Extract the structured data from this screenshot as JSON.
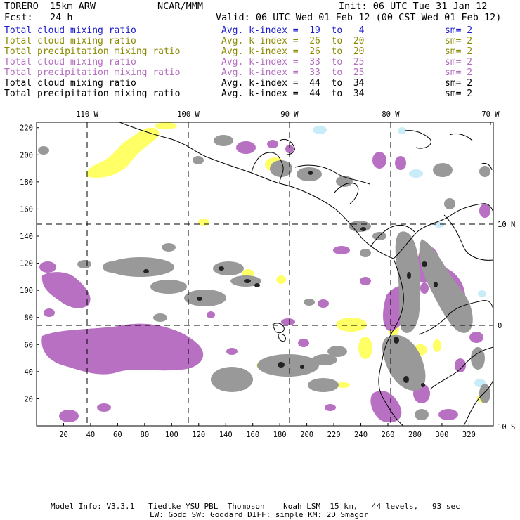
{
  "header": {
    "model": "TORERO  15km ARW",
    "org": "NCAR/MMM",
    "init": "Init: 06 UTC Tue 31 Jan 12",
    "fcst": "Fcst:   24 h",
    "valid": "Valid: 06 UTC Wed 01 Feb 12 (00 CST Wed 01 Feb 12)"
  },
  "legend": [
    {
      "field": "Total cloud mixing ratio",
      "index": "Avg. k-index =  19  to   4",
      "sm": "sm= 2",
      "color": "#1a1acc"
    },
    {
      "field": "Total cloud mixing ratio",
      "index": "Avg. k-index =  26  to  20",
      "sm": "sm= 2",
      "color": "#8a8a00"
    },
    {
      "field": "Total precipitation mixing ratio",
      "index": "Avg. k-index =  26  to  20",
      "sm": "sm= 2",
      "color": "#8a8a00"
    },
    {
      "field": "Total cloud mixing ratio",
      "index": "Avg. k-index =  33  to  25",
      "sm": "sm= 2",
      "color": "#b36bbf"
    },
    {
      "field": "Total precipitation mixing ratio",
      "index": "Avg. k-index =  33  to  25",
      "sm": "sm= 2",
      "color": "#b36bbf"
    },
    {
      "field": "Total cloud mixing ratio",
      "index": "Avg. k-index =  44  to  34",
      "sm": "sm= 2",
      "color": "#000000"
    },
    {
      "field": "Total precipitation mixing ratio",
      "index": "Avg. k-index =  44  to  34",
      "sm": "sm= 2",
      "color": "#000000"
    }
  ],
  "map": {
    "lon_labels": [
      "110 W",
      "100 W",
      "90 W",
      "80 W",
      "70 W"
    ],
    "lat_labels": [
      "10 N",
      "0",
      "10 S"
    ],
    "x_ticks": [
      20,
      40,
      60,
      80,
      100,
      120,
      140,
      160,
      180,
      200,
      220,
      240,
      260,
      280,
      300,
      320
    ],
    "y_ticks": [
      20,
      40,
      60,
      80,
      100,
      120,
      140,
      160,
      180,
      200,
      220
    ],
    "colors": {
      "cloud_low": "#c8ecf8",
      "cloud_mid": "#ffff66",
      "cloud_upper": "#b770c2",
      "cloud_deep": "#999999",
      "cloud_core": "#222222",
      "coast": "#000000"
    }
  },
  "footer": {
    "line1": "Model Info: V3.3.1   Tiedtke YSU PBL  Thompson    Noah LSM  15 km,   44 levels,   93 sec",
    "line2": "LW: Godd SW: Goddard DIFF: simple KM: 2D Smagor"
  }
}
